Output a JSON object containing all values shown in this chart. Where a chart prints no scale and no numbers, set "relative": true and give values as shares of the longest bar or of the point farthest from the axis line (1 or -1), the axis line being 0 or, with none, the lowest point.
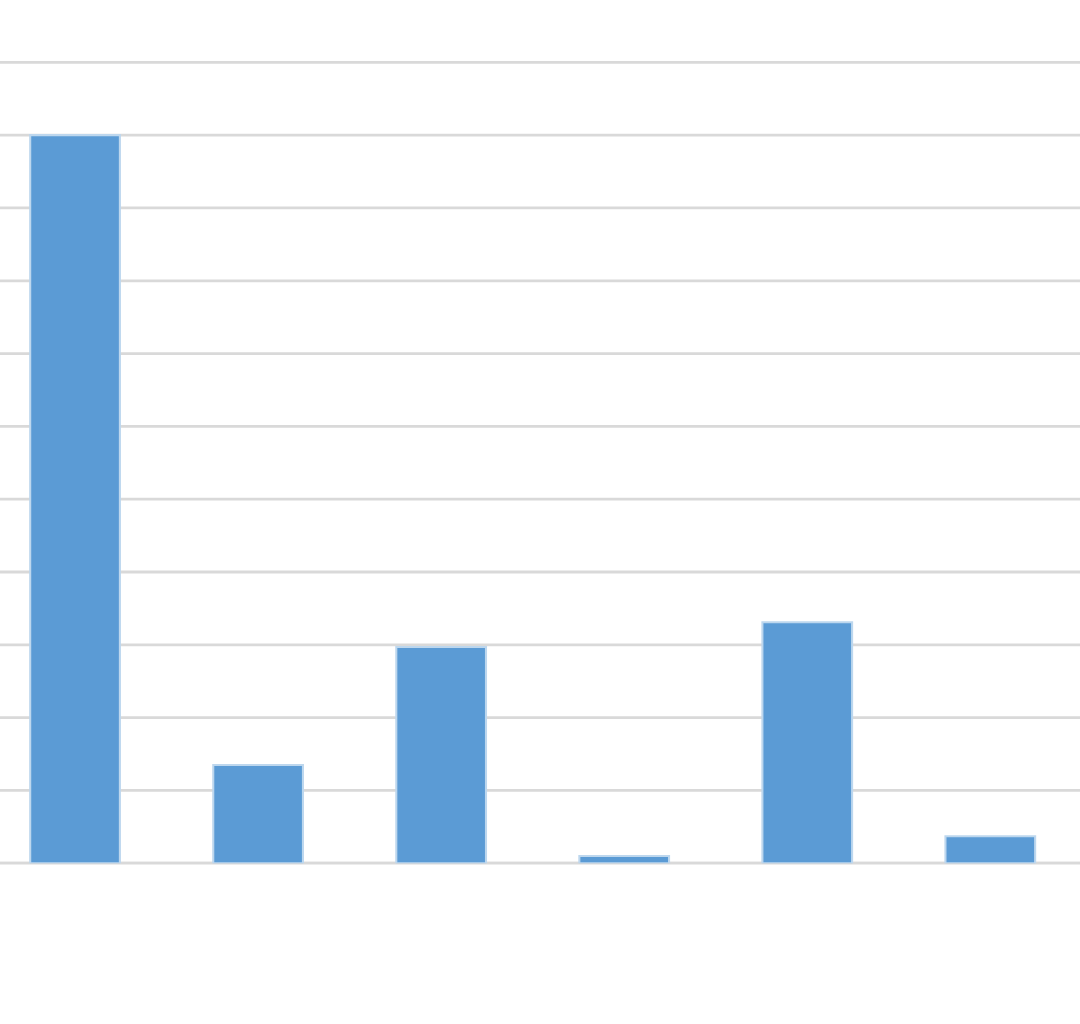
{
  "chart_data": {
    "type": "bar",
    "relative": true,
    "categories": [
      null,
      null,
      null,
      null,
      null,
      null
    ],
    "values": [
      1,
      0.135,
      0.297,
      0.01,
      0.331,
      0.037
    ],
    "color": "#5b9bd5",
    "grid": "y"
  }
}
